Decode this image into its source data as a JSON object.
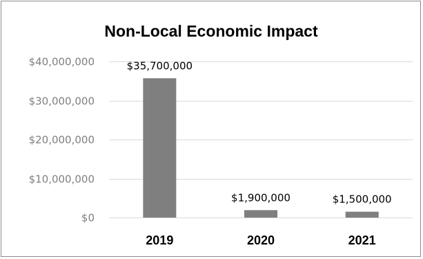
{
  "chart_data": {
    "type": "bar",
    "title": "Non-Local Economic Impact",
    "categories": [
      "2019",
      "2020",
      "2021"
    ],
    "values": [
      35700000,
      1900000,
      1500000
    ],
    "data_labels": [
      "$35,700,000",
      "$1,900,000",
      "$1,500,000"
    ],
    "ylim": [
      0,
      40000000
    ],
    "y_ticks": [
      0,
      10000000,
      20000000,
      30000000,
      40000000
    ],
    "y_tick_labels": [
      "$0",
      "$10,000,000",
      "$20,000,000",
      "$30,000,000",
      "$40,000,000"
    ],
    "grid": true,
    "legend": "none",
    "bar_color": "#7f7f7f",
    "gridline_color": "#d9d9d9"
  }
}
